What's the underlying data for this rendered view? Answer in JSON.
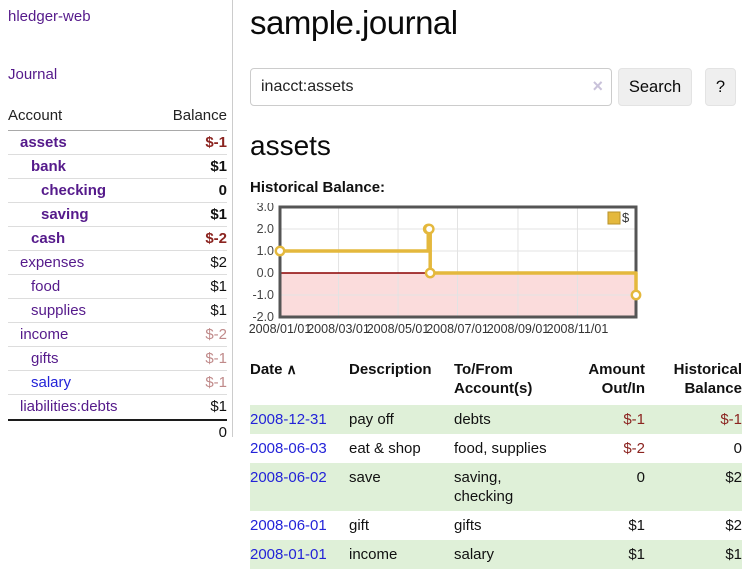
{
  "sidebar": {
    "brand": "hledger-web",
    "nav": [
      {
        "label": "Journal"
      }
    ],
    "accounts_table": {
      "headers": {
        "account": "Account",
        "balance": "Balance"
      },
      "rows": [
        {
          "account": "assets",
          "balance": "$-1",
          "level": 0,
          "bold": true,
          "link_color": "purple",
          "balance_style": "neg"
        },
        {
          "account": "bank",
          "balance": "$1",
          "level": 1,
          "bold": true,
          "link_color": "purple",
          "balance_style": "normal"
        },
        {
          "account": "checking",
          "balance": "0",
          "level": 2,
          "bold": true,
          "link_color": "purple",
          "balance_style": "normal"
        },
        {
          "account": "saving",
          "balance": "$1",
          "level": 2,
          "bold": true,
          "link_color": "purple",
          "balance_style": "normal"
        },
        {
          "account": "cash",
          "balance": "$-2",
          "level": 1,
          "bold": true,
          "link_color": "purple",
          "balance_style": "neg"
        },
        {
          "account": "expenses",
          "balance": "$2",
          "level": 0,
          "bold": false,
          "link_color": "purple",
          "balance_style": "normal"
        },
        {
          "account": "food",
          "balance": "$1",
          "level": 1,
          "bold": false,
          "link_color": "purple",
          "balance_style": "normal"
        },
        {
          "account": "supplies",
          "balance": "$1",
          "level": 1,
          "bold": false,
          "link_color": "purple",
          "balance_style": "normal"
        },
        {
          "account": "income",
          "balance": "$-2",
          "level": 0,
          "bold": false,
          "link_color": "purple",
          "balance_style": "negfade"
        },
        {
          "account": "gifts",
          "balance": "$-1",
          "level": 1,
          "bold": false,
          "link_color": "purple",
          "balance_style": "negfade"
        },
        {
          "account": "salary",
          "balance": "$-1",
          "level": 1,
          "bold": false,
          "link_color": "blue",
          "balance_style": "negfade"
        },
        {
          "account": "liabilities:debts",
          "balance": "$1",
          "level": 0,
          "bold": false,
          "link_color": "purple",
          "balance_style": "normal"
        }
      ],
      "total": "0"
    }
  },
  "header": {
    "title": "sample.journal"
  },
  "search": {
    "value": "inacct:assets",
    "clear_icon": "×",
    "button_label": "Search",
    "help_label": "?"
  },
  "account_page": {
    "heading": "assets",
    "chart_label": "Historical Balance:"
  },
  "chart_data": {
    "type": "line",
    "title": "Historical Balance:",
    "step": true,
    "legend": {
      "label": "$",
      "position": "top-right"
    },
    "ylim": [
      -2,
      3
    ],
    "y_ticks": [
      "3.0",
      "2.0",
      "1.0",
      "0.0",
      "-1.0",
      "-2.0"
    ],
    "x_ticks": [
      "2008/01/01",
      "2008/03/01",
      "2008/05/01",
      "2008/07/01",
      "2008/09/01",
      "2008/11/01"
    ],
    "series": [
      {
        "name": "$",
        "points": [
          {
            "date": "2008/01/01",
            "value": 1
          },
          {
            "date": "2008/06/01",
            "value": 2
          },
          {
            "date": "2008/06/02",
            "value": 2
          },
          {
            "date": "2008/06/03",
            "value": 0
          },
          {
            "date": "2008/12/31",
            "value": -1
          }
        ]
      }
    ],
    "grid": true,
    "negative_region_shaded": true
  },
  "register_table": {
    "headers": {
      "date": "Date",
      "sort_ascending_icon": "∧",
      "description": "Description",
      "accounts": "To/From Account(s)",
      "amount": "Amount Out/In",
      "balance": "Historical Balance"
    },
    "rows": [
      {
        "date": "2008-12-31",
        "description": "pay off",
        "accounts": "debts",
        "amount": "$-1",
        "balance": "$-1",
        "highlight": true
      },
      {
        "date": "2008-06-03",
        "description": "eat & shop",
        "accounts": "food, supplies",
        "amount": "$-2",
        "balance": "0",
        "highlight": false
      },
      {
        "date": "2008-06-02",
        "description": "save",
        "accounts": "saving,\nchecking",
        "amount": "0",
        "balance": "$2",
        "highlight": true
      },
      {
        "date": "2008-06-01",
        "description": "gift",
        "accounts": "gifts",
        "amount": "$1",
        "balance": "$2",
        "highlight": false
      },
      {
        "date": "2008-01-01",
        "description": "income",
        "accounts": "salary",
        "amount": "$1",
        "balance": "$1",
        "highlight": true
      }
    ]
  },
  "colors": {
    "link_purple": "#551a8b",
    "link_blue": "#2323d8",
    "negative": "#8b2420",
    "negative_faded": "#c08a8a",
    "row_highlight": "#dff0d8",
    "chart_line": "#e4b83d",
    "chart_negative_bg": "#fbdcdc",
    "zero_line": "#8b0000"
  }
}
